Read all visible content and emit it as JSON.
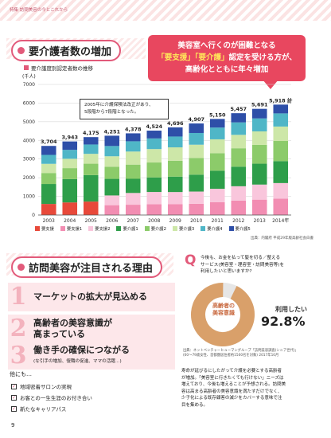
{
  "header": {
    "text": "特集 訪問美容の今とこれから"
  },
  "section1": {
    "title": "要介護者数の増加"
  },
  "callout": {
    "line1": "美容室へ行くのが困難となる",
    "line2_pre": "「要支援」「要介護」",
    "line2_post": "認定を受ける方が、",
    "line3": "高齢化とともに年々増加"
  },
  "chart_subtitle": "要介護度別認定者数の推移",
  "unit_label": "(千人)",
  "note": {
    "line1": "2005年に介護保険法改正があり、",
    "line2": "5段階から7段階となった。"
  },
  "source": "出典：内閣府 平成29年版高齢社会白書",
  "chart_data": {
    "type": "bar",
    "stacked": true,
    "categories": [
      "2003",
      "2004",
      "2005",
      "2006",
      "2007",
      "2008",
      "2009",
      "2010",
      "2011",
      "2012",
      "2013",
      "2014年"
    ],
    "ylim": [
      0,
      7000
    ],
    "yticks": [
      0,
      1000,
      2000,
      3000,
      4000,
      5000,
      6000,
      7000
    ],
    "totals": [
      3704,
      3943,
      4175,
      4251,
      4378,
      4524,
      4696,
      4907,
      5150,
      5457,
      5691,
      5918
    ],
    "total_labels": [
      "3,704",
      "3,943",
      "4,175",
      "4,251",
      "4,378",
      "4,524",
      "4,696",
      "4,907",
      "5,150",
      "5,457",
      "5,691",
      "5,918 計"
    ],
    "series": [
      {
        "name": "要支援",
        "color": "#e8493a",
        "values": [
          593,
          674,
          720,
          0,
          0,
          0,
          0,
          0,
          0,
          0,
          0,
          0
        ]
      },
      {
        "name": "要支援1",
        "color": "#f28db2",
        "values": [
          0,
          0,
          0,
          527,
          552,
          575,
          576,
          604,
          691,
          774,
          825,
          874
        ]
      },
      {
        "name": "要支援2",
        "color": "#f9c6dc",
        "values": [
          0,
          0,
          0,
          522,
          630,
          660,
          656,
          654,
          715,
          768,
          807,
          839
        ]
      },
      {
        "name": "要介護1",
        "color": "#2e9e4a",
        "values": [
          1070,
          1250,
          1420,
          890,
          760,
          780,
          825,
          906,
          967,
          1050,
          1119,
          1174
        ]
      },
      {
        "name": "要介護2",
        "color": "#8ccb6a",
        "values": [
          590,
          590,
          610,
          650,
          760,
          800,
          850,
          891,
          943,
          986,
          1008,
          1082
        ]
      },
      {
        "name": "要介護3",
        "color": "#cde7a8",
        "values": [
          490,
          500,
          530,
          560,
          700,
          720,
          720,
          713,
          741,
          719,
          724,
          773
        ]
      },
      {
        "name": "要介護4",
        "color": "#4fb6c7",
        "values": [
          480,
          480,
          500,
          550,
          550,
          570,
          580,
          629,
          631,
          668,
          695,
          705
        ]
      },
      {
        "name": "要介護5",
        "color": "#2e4fa8",
        "values": [
          481,
          449,
          395,
          552,
          426,
          419,
          489,
          510,
          462,
          492,
          513,
          471
        ]
      }
    ]
  },
  "section2": {
    "title": "訪問美容が注目される理由"
  },
  "reasons": [
    {
      "num": "1",
      "line1": "マーケットの拡大が見込める",
      "line2": "",
      "sub": ""
    },
    {
      "num": "2",
      "line1": "高齢者の美容意識が",
      "line2": "高まっている",
      "sub": ""
    },
    {
      "num": "3",
      "line1": "働き手の確保につながる",
      "line2": "",
      "sub": "(な引手の増加、復職の促進、ママの活躍…)"
    }
  ],
  "others_title": "他にも…",
  "checks": [
    "地域密着サロンの実現",
    "お客との一生生涯のお付き合い",
    "新たなキャリアパス"
  ],
  "question": {
    "mark": "Q",
    "line1": "今後も、お金を払って髪を切る／整える",
    "line2": "サービス(美容室・理容室・訪問美容等)を",
    "line3": "利用したいと思いますか?"
  },
  "donut": {
    "center_label_1": "高齢者の",
    "center_label_2": "美容意識",
    "value_label": "利用したい",
    "value": "92.8%",
    "percent": 92.8,
    "color_main": "#d9a06a",
    "color_rest": "#e6e6e6"
  },
  "donut_source": {
    "line1": "出典：ネットベンチャーヒューマングループ「訪問美容調査(シニア世代)」",
    "line2": "(60〜79歳女性、首都圏居住者約1500名を対象) 2017年10月"
  },
  "body_text": [
    "寿命が延びるにしたがって介護を必要とする高齢者",
    "が増加。「美容室に行きたくても行けない」ニーズは",
    "増えており、今後も増えることが予想される。訪問美",
    "容は高まる高齢者の美容意識を満たすだけでなく、",
    "少子化による既存顧客の減少をカバーする意味で注",
    "目を集める。"
  ],
  "page_number": "9"
}
